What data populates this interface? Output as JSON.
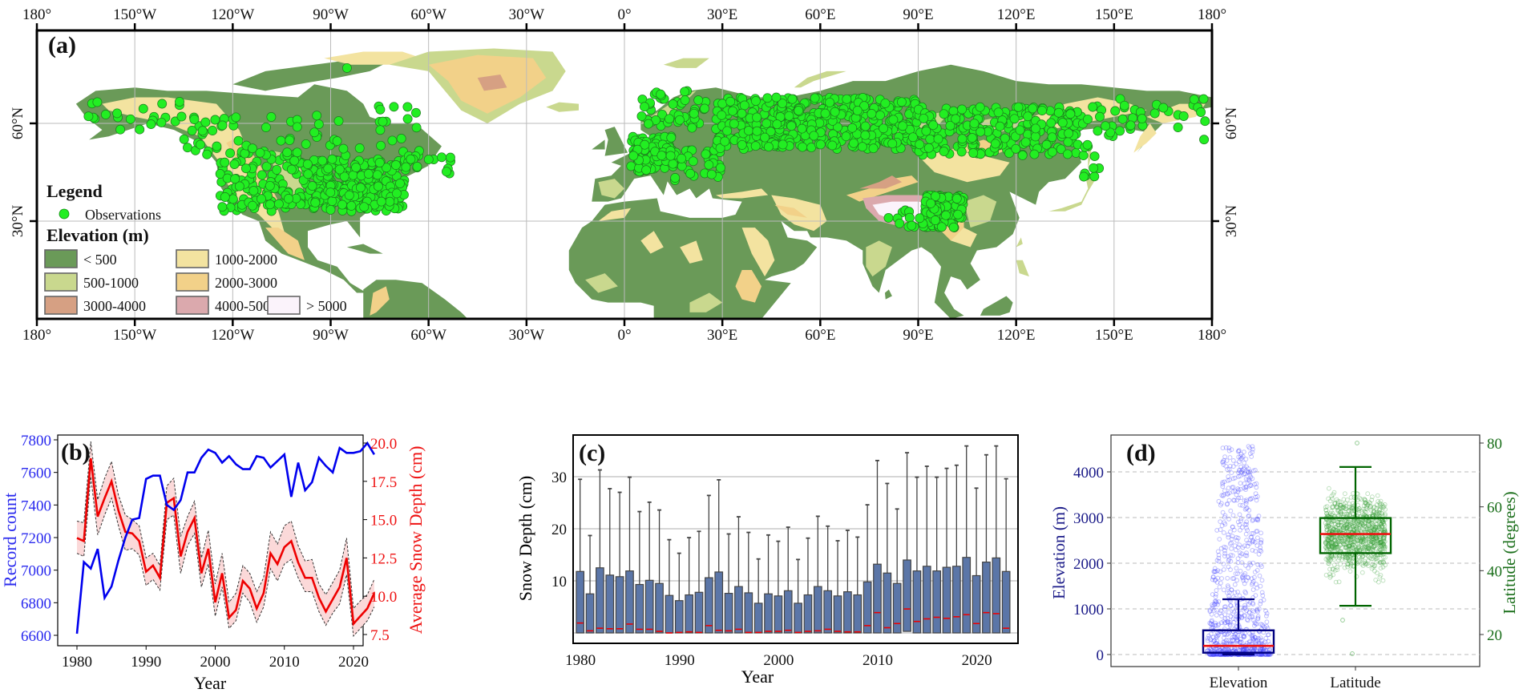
{
  "figure": {
    "panels": [
      "(a)",
      "(b)",
      "(c)",
      "(d)"
    ]
  },
  "map": {
    "label": "(a)",
    "lon_ticks": [
      "180°",
      "150°W",
      "120°W",
      "90°W",
      "60°W",
      "30°W",
      "0°",
      "30°E",
      "60°E",
      "90°E",
      "120°E",
      "150°E",
      "180°"
    ],
    "lon_values": [
      -180,
      -150,
      -120,
      -90,
      -60,
      -30,
      0,
      30,
      60,
      90,
      120,
      150,
      180
    ],
    "lat_ticks": [
      "60°N",
      "30°N"
    ],
    "lat_values": [
      60,
      30
    ],
    "legend": {
      "title": "Legend",
      "observations_label": "Observations",
      "observations_color": "#22ee22",
      "elevation_title": "Elevation (m)",
      "classes": [
        {
          "label": "< 500",
          "color": "#6a9a58"
        },
        {
          "label": "1000-2000",
          "color": "#f3e3a0"
        },
        {
          "label": "500-1000",
          "color": "#c9d88e"
        },
        {
          "label": "2000-3000",
          "color": "#f2d189"
        },
        {
          "label": "3000-4000",
          "color": "#d6a083"
        },
        {
          "label": "4000-5000",
          "color": "#dba9ad"
        },
        {
          "label": "> 5000",
          "color": "#fbf3fb"
        }
      ]
    }
  },
  "chart_data": [
    {
      "panel": "(b)",
      "type": "line",
      "title": "",
      "xlabel": "Year",
      "ylabel": "Record count",
      "ylabel_right": "Average Snow Depth (cm)",
      "x": [
        1980,
        1981,
        1982,
        1983,
        1984,
        1985,
        1986,
        1987,
        1988,
        1989,
        1990,
        1991,
        1992,
        1993,
        1994,
        1995,
        1996,
        1997,
        1998,
        1999,
        2000,
        2001,
        2002,
        2003,
        2004,
        2005,
        2006,
        2007,
        2008,
        2009,
        2010,
        2011,
        2012,
        2013,
        2014,
        2015,
        2016,
        2017,
        2018,
        2019,
        2020,
        2021,
        2022,
        2023
      ],
      "xticks": [
        "1980",
        "1990",
        "2000",
        "2010",
        "2020"
      ],
      "yticks_left": [
        "6600",
        "6800",
        "7000",
        "7200",
        "7400",
        "7600",
        "7800"
      ],
      "yticks_right": [
        "7.5",
        "10.0",
        "12.5",
        "15.0",
        "17.5",
        "20.0"
      ],
      "ylim_left": [
        6560,
        7820
      ],
      "ylim_right": [
        6.8,
        20.4
      ],
      "series": [
        {
          "name": "Record count",
          "axis": "left",
          "color": "#0000ee",
          "values": [
            6610,
            7050,
            7010,
            7130,
            6830,
            6900,
            7060,
            7200,
            7310,
            7320,
            7560,
            7580,
            7580,
            7400,
            7370,
            7430,
            7600,
            7600,
            7690,
            7740,
            7720,
            7660,
            7700,
            7650,
            7620,
            7620,
            7700,
            7690,
            7630,
            7670,
            7710,
            7450,
            7660,
            7490,
            7540,
            7690,
            7640,
            7600,
            7750,
            7720,
            7720,
            7730,
            7780,
            7710
          ]
        },
        {
          "name": "Average Snow Depth",
          "axis": "right",
          "color": "#ee0000",
          "values": [
            13.8,
            13.6,
            19.0,
            15.2,
            16.4,
            17.5,
            15.6,
            14.2,
            14.1,
            13.6,
            11.6,
            12.0,
            11.2,
            16.1,
            16.4,
            12.6,
            14.2,
            15.1,
            11.5,
            13.1,
            9.6,
            11.5,
            8.6,
            9.1,
            11.0,
            10.5,
            9.2,
            10.2,
            12.8,
            12.1,
            13.2,
            13.6,
            12.2,
            11.2,
            11.2,
            9.9,
            9.0,
            9.8,
            10.6,
            12.5,
            8.2,
            8.7,
            9.2,
            10.2
          ]
        },
        {
          "name": "Snow Depth upper bound",
          "axis": "right",
          "color": "#333333",
          "style": "dashed",
          "values": [
            14.9,
            14.8,
            20.1,
            16.3,
            17.7,
            18.8,
            16.6,
            15.3,
            15.0,
            14.6,
            12.5,
            12.8,
            12.0,
            17.2,
            17.7,
            13.9,
            15.2,
            16.2,
            12.5,
            14.3,
            10.8,
            12.8,
            9.6,
            10.2,
            12.0,
            11.5,
            10.3,
            11.2,
            14.2,
            13.4,
            14.6,
            14.9,
            13.3,
            12.3,
            12.4,
            10.8,
            10.1,
            10.9,
            11.7,
            13.8,
            9.2,
            9.7,
            10.1,
            11.1
          ]
        },
        {
          "name": "Snow Depth lower bound",
          "axis": "right",
          "color": "#333333",
          "style": "dashed",
          "values": [
            12.8,
            12.6,
            17.8,
            14.0,
            15.3,
            16.4,
            14.6,
            13.0,
            13.1,
            12.7,
            10.7,
            11.1,
            10.4,
            15.0,
            15.3,
            11.5,
            13.3,
            14.1,
            10.6,
            12.1,
            8.7,
            10.6,
            7.9,
            8.4,
            10.2,
            9.6,
            8.3,
            9.3,
            11.8,
            11.0,
            12.1,
            12.4,
            11.2,
            10.3,
            10.3,
            9.0,
            8.1,
            8.9,
            9.5,
            11.4,
            7.4,
            7.9,
            8.4,
            9.3
          ]
        }
      ],
      "grid": false
    },
    {
      "panel": "(c)",
      "type": "box",
      "xlabel": "Year",
      "ylabel": "Snow Depth (cm)",
      "xticks": [
        "1980",
        "1990",
        "2000",
        "2010",
        "2020"
      ],
      "yticks": [
        "10",
        "20",
        "30"
      ],
      "ylim": [
        -1.5,
        37.5
      ],
      "grid": true,
      "box_color": "#5b76a8",
      "median_color": "#ee0000",
      "x": [
        1980,
        1981,
        1982,
        1983,
        1984,
        1985,
        1986,
        1987,
        1988,
        1989,
        1990,
        1991,
        1992,
        1993,
        1994,
        1995,
        1996,
        1997,
        1998,
        1999,
        2000,
        2001,
        2002,
        2003,
        2004,
        2005,
        2006,
        2007,
        2008,
        2009,
        2010,
        2011,
        2012,
        2013,
        2014,
        2015,
        2016,
        2017,
        2018,
        2019,
        2020,
        2021,
        2022,
        2023
      ],
      "q1": [
        0,
        0,
        0,
        0,
        0,
        0,
        0,
        0,
        0,
        0,
        0,
        0,
        0,
        0,
        0,
        0,
        0,
        0,
        0,
        0,
        0,
        0,
        0,
        0,
        0,
        0,
        0,
        0,
        0,
        0,
        0,
        0,
        0,
        0.3,
        0,
        0,
        0,
        0,
        0,
        0,
        0,
        0,
        0,
        0
      ],
      "q3": [
        11.8,
        7.5,
        12.5,
        11.1,
        10.8,
        11.9,
        9.3,
        10.1,
        9.5,
        7.2,
        6.2,
        7.3,
        7.8,
        10.6,
        11.7,
        7.6,
        8.9,
        7.7,
        5.7,
        7.5,
        7.1,
        8.1,
        5.7,
        7.3,
        8.9,
        8.1,
        7.1,
        7.9,
        7.3,
        9.8,
        13.2,
        11.5,
        9.5,
        14.0,
        11.9,
        12.8,
        11.9,
        12.6,
        12.8,
        14.5,
        11.0,
        13.6,
        14.4,
        11.8
      ],
      "median": [
        1.9,
        0.4,
        0.9,
        0.8,
        0.8,
        1.7,
        0.7,
        0.7,
        0.3,
        0.0,
        0.1,
        0.2,
        0.1,
        1.4,
        0.5,
        0.4,
        0.7,
        0.1,
        0.1,
        0.3,
        0.3,
        0.5,
        0.1,
        0.3,
        0.4,
        0.7,
        0.3,
        0.2,
        0.2,
        1.4,
        3.9,
        1.0,
        1.8,
        4.6,
        2.2,
        2.7,
        3.0,
        2.8,
        3.1,
        3.5,
        1.8,
        3.9,
        3.7,
        0.9
      ],
      "whisker_high": [
        29.5,
        18.7,
        31.3,
        27.7,
        27.0,
        29.9,
        23.3,
        25.1,
        23.6,
        17.9,
        15.3,
        18.3,
        19.5,
        26.4,
        29.4,
        19.0,
        22.3,
        19.3,
        14.2,
        18.8,
        17.6,
        20.3,
        14.1,
        18.2,
        22.4,
        20.5,
        17.7,
        19.7,
        18.4,
        24.6,
        33.1,
        28.7,
        23.8,
        34.6,
        29.9,
        32.0,
        29.9,
        31.6,
        32.2,
        35.9,
        27.8,
        34.2,
        35.9,
        29.6
      ],
      "whisker_low": [
        0,
        0,
        0,
        0,
        0,
        0,
        0,
        0,
        0,
        0,
        0,
        0,
        0,
        0,
        0,
        0,
        0,
        0,
        0,
        0,
        0,
        0,
        0,
        0,
        0,
        0,
        0,
        0,
        0,
        0,
        0,
        0,
        0,
        0,
        0,
        0,
        0,
        0,
        0,
        0,
        0,
        0,
        0,
        0
      ]
    },
    {
      "panel": "(d)",
      "type": "box",
      "categories": [
        "Elevation",
        "Latitude"
      ],
      "xlabel": "",
      "ylabel": "Elevation (m)",
      "ylabel_right": "Latitude (degrees)",
      "yticks_left": [
        "0",
        "1000",
        "2000",
        "3000",
        "4000"
      ],
      "yticks_right": [
        "20",
        "40",
        "60",
        "80"
      ],
      "ylim_left": [
        -250,
        4800
      ],
      "ylim_right": [
        10,
        82
      ],
      "grid": "dashed",
      "series": [
        {
          "name": "Elevation",
          "axis": "left",
          "color": "#000080",
          "point_color": "#4444ff",
          "q1": 40,
          "median": 190,
          "q3": 530,
          "whisker_low": 0,
          "whisker_high": 1210,
          "max_outlier": 4620
        },
        {
          "name": "Latitude",
          "axis": "right",
          "color": "#006400",
          "point_color": "#2e9b2e",
          "q1": 45.5,
          "median": 51.5,
          "q3": 56.5,
          "whisker_low": 29,
          "whisker_high": 72.5,
          "min_outlier": 14,
          "max_outlier": 80
        }
      ]
    }
  ]
}
